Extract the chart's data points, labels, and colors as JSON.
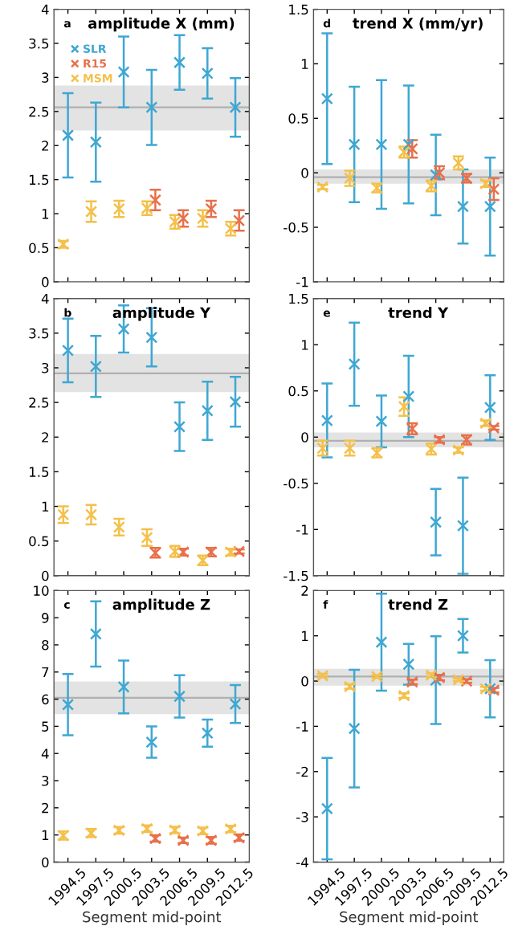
{
  "chart_data": [
    {
      "type": "scatter",
      "title": "amplitude X (mm)",
      "annotations": [
        "a"
      ],
      "marker": "cross",
      "legend": "top left",
      "tick_labels": "y",
      "grid": false,
      "xlim": [
        1993,
        2014
      ],
      "xticks": [
        1994.5,
        1997.5,
        2000.5,
        2003.5,
        2006.5,
        2009.5,
        2012.5
      ],
      "ylim": [
        0,
        4
      ],
      "yticks": [
        0,
        0.5,
        1,
        1.5,
        2,
        2.5,
        3,
        3.5,
        4
      ],
      "bands": [
        {
          "axis": "y",
          "from": 2.22,
          "to": 2.88,
          "color": "#e3e3e3"
        }
      ],
      "ref_lines": [
        {
          "axis": "y",
          "value": 2.56,
          "color": "#b0b0b0"
        }
      ],
      "series": [
        {
          "name": "SLR",
          "color": "#3ea7d3",
          "x": [
            1994.5,
            1997.5,
            2000.5,
            2003.5,
            2006.5,
            2009.5,
            2012.5
          ],
          "values": [
            2.15,
            2.05,
            3.08,
            2.56,
            3.22,
            3.06,
            2.56
          ],
          "errors": [
            0.62,
            0.58,
            0.52,
            0.55,
            0.4,
            0.37,
            0.43
          ]
        },
        {
          "name": "R15",
          "color": "#e8704a",
          "x": [
            2003.9,
            2006.9,
            2009.9,
            2012.9
          ],
          "values": [
            1.2,
            0.93,
            1.07,
            0.9
          ],
          "errors": [
            0.15,
            0.12,
            0.12,
            0.15
          ]
        },
        {
          "name": "MSM",
          "color": "#f4c04a",
          "x": [
            1994.0,
            1997.0,
            2000.0,
            2003.0,
            2006.0,
            2009.0,
            2012.0
          ],
          "values": [
            0.55,
            1.03,
            1.07,
            1.08,
            0.88,
            0.93,
            0.78
          ],
          "errors": [
            0.05,
            0.15,
            0.12,
            0.1,
            0.1,
            0.12,
            0.1
          ]
        }
      ]
    },
    {
      "type": "scatter",
      "title": "trend X (mm/yr)",
      "annotations": [
        "d"
      ],
      "marker": "cross",
      "tick_labels": "y",
      "grid": false,
      "xlim": [
        1993,
        2014
      ],
      "xticks": [
        1994.5,
        1997.5,
        2000.5,
        2003.5,
        2006.5,
        2009.5,
        2012.5
      ],
      "ylim": [
        -1,
        1.5
      ],
      "yticks": [
        -1,
        -0.5,
        0,
        0.5,
        1,
        1.5
      ],
      "bands": [
        {
          "axis": "y",
          "from": -0.1,
          "to": 0.03,
          "color": "#e3e3e3"
        }
      ],
      "ref_lines": [
        {
          "axis": "y",
          "value": -0.04,
          "color": "#b0b0b0"
        }
      ],
      "series": [
        {
          "color": "#3ea7d3",
          "x": [
            1994.5,
            1997.5,
            2000.5,
            2003.5,
            2006.5,
            2009.5,
            2012.5
          ],
          "values": [
            0.68,
            0.26,
            0.26,
            0.26,
            -0.02,
            -0.31,
            -0.31
          ],
          "errors": [
            0.6,
            0.53,
            0.59,
            0.54,
            0.37,
            0.34,
            0.45
          ]
        },
        {
          "color": "#e8704a",
          "x": [
            2003.9,
            2006.9,
            2009.9,
            2012.9
          ],
          "values": [
            0.22,
            0.0,
            -0.05,
            -0.15
          ],
          "errors": [
            0.08,
            0.06,
            0.04,
            0.1
          ]
        },
        {
          "color": "#f4c04a",
          "x": [
            1994.0,
            1997.0,
            2000.0,
            2003.0,
            2006.0,
            2009.0,
            2012.0
          ],
          "values": [
            -0.13,
            -0.05,
            -0.14,
            0.19,
            -0.12,
            0.09,
            -0.1
          ],
          "errors": [
            0.02,
            0.07,
            0.04,
            0.05,
            0.05,
            0.06,
            0.03
          ]
        }
      ]
    },
    {
      "type": "scatter",
      "title": "amplitude Y",
      "annotations": [
        "b"
      ],
      "marker": "cross",
      "tick_labels": "y",
      "grid": false,
      "xlim": [
        1993,
        2014
      ],
      "xticks": [
        1994.5,
        1997.5,
        2000.5,
        2003.5,
        2006.5,
        2009.5,
        2012.5
      ],
      "ylim": [
        0,
        4
      ],
      "yticks": [
        0,
        0.5,
        1,
        1.5,
        2,
        2.5,
        3,
        3.5,
        4
      ],
      "bands": [
        {
          "axis": "y",
          "from": 2.65,
          "to": 3.2,
          "color": "#e3e3e3"
        }
      ],
      "ref_lines": [
        {
          "axis": "y",
          "value": 2.92,
          "color": "#b0b0b0"
        }
      ],
      "series": [
        {
          "color": "#3ea7d3",
          "x": [
            1994.5,
            1997.5,
            2000.5,
            2003.5,
            2006.5,
            2009.5,
            2012.5
          ],
          "values": [
            3.25,
            3.02,
            3.56,
            3.44,
            2.15,
            2.38,
            2.51
          ],
          "errors": [
            0.46,
            0.44,
            0.34,
            0.42,
            0.35,
            0.42,
            0.36
          ]
        },
        {
          "color": "#e8704a",
          "x": [
            2003.9,
            2006.9,
            2009.9,
            2012.9
          ],
          "values": [
            0.33,
            0.34,
            0.34,
            0.35
          ],
          "errors": [
            0.07,
            0.05,
            0.06,
            0.03
          ]
        },
        {
          "color": "#f4c04a",
          "x": [
            1994.0,
            1997.0,
            2000.0,
            2003.0,
            2006.0,
            2009.0,
            2012.0
          ],
          "values": [
            0.88,
            0.88,
            0.7,
            0.55,
            0.35,
            0.22,
            0.34
          ],
          "errors": [
            0.12,
            0.14,
            0.12,
            0.12,
            0.08,
            0.07,
            0.05
          ]
        }
      ]
    },
    {
      "type": "scatter",
      "title": "trend Y",
      "annotations": [
        "e"
      ],
      "marker": "cross",
      "tick_labels": "y",
      "grid": false,
      "xlim": [
        1993,
        2014
      ],
      "xticks": [
        1994.5,
        1997.5,
        2000.5,
        2003.5,
        2006.5,
        2009.5,
        2012.5
      ],
      "ylim": [
        -1.5,
        1.5
      ],
      "yticks": [
        -1.5,
        -1,
        -0.5,
        0,
        0.5,
        1,
        1.5
      ],
      "bands": [
        {
          "axis": "y",
          "from": -0.11,
          "to": 0.05,
          "color": "#e3e3e3"
        }
      ],
      "ref_lines": [
        {
          "axis": "y",
          "value": -0.04,
          "color": "#b0b0b0"
        }
      ],
      "series": [
        {
          "color": "#3ea7d3",
          "x": [
            1994.5,
            1997.5,
            2000.5,
            2003.5,
            2006.5,
            2009.5,
            2012.5
          ],
          "values": [
            0.18,
            0.79,
            0.17,
            0.44,
            -0.92,
            -0.96,
            0.32
          ],
          "errors": [
            0.4,
            0.45,
            0.28,
            0.44,
            0.36,
            0.52,
            0.35
          ]
        },
        {
          "color": "#e8704a",
          "x": [
            2003.9,
            2006.9,
            2009.9,
            2012.9
          ],
          "values": [
            0.09,
            -0.03,
            -0.03,
            0.1
          ],
          "errors": [
            0.06,
            0.03,
            0.05,
            0.02
          ]
        },
        {
          "color": "#f4c04a",
          "x": [
            1994.0,
            1997.0,
            2000.0,
            2003.0,
            2006.0,
            2009.0,
            2012.0
          ],
          "values": [
            -0.12,
            -0.12,
            -0.17,
            0.33,
            -0.13,
            -0.14,
            0.15
          ],
          "errors": [
            0.08,
            0.08,
            0.05,
            0.1,
            0.06,
            0.03,
            0.03
          ]
        }
      ]
    },
    {
      "type": "scatter",
      "title": "amplitude Z",
      "annotations": [
        "c"
      ],
      "xlabel": "Segment mid-point",
      "marker": "cross",
      "grid": false,
      "xlim": [
        1993,
        2014
      ],
      "xticks": [
        1994.5,
        1997.5,
        2000.5,
        2003.5,
        2006.5,
        2009.5,
        2012.5
      ],
      "ylim": [
        0,
        10
      ],
      "yticks": [
        0,
        1,
        2,
        3,
        4,
        5,
        6,
        7,
        8,
        9,
        10
      ],
      "bands": [
        {
          "axis": "y",
          "from": 5.45,
          "to": 6.65,
          "color": "#e3e3e3"
        }
      ],
      "ref_lines": [
        {
          "axis": "y",
          "value": 6.05,
          "color": "#b0b0b0"
        }
      ],
      "series": [
        {
          "color": "#3ea7d3",
          "x": [
            1994.5,
            1997.5,
            2000.5,
            2003.5,
            2006.5,
            2009.5,
            2012.5
          ],
          "values": [
            5.8,
            8.4,
            6.45,
            4.42,
            6.1,
            4.75,
            5.82
          ],
          "errors": [
            1.13,
            1.2,
            0.97,
            0.58,
            0.78,
            0.5,
            0.7
          ]
        },
        {
          "color": "#e8704a",
          "x": [
            2003.9,
            2006.9,
            2009.9,
            2012.9
          ],
          "values": [
            0.87,
            0.8,
            0.8,
            0.9
          ],
          "errors": [
            0.12,
            0.1,
            0.12,
            0.12
          ]
        },
        {
          "color": "#f4c04a",
          "x": [
            1994.0,
            1997.0,
            2000.0,
            2003.0,
            2006.0,
            2009.0,
            2012.0
          ],
          "values": [
            0.98,
            1.07,
            1.17,
            1.23,
            1.18,
            1.15,
            1.22
          ],
          "errors": [
            0.15,
            0.15,
            0.12,
            0.12,
            0.12,
            0.12,
            0.12
          ]
        }
      ]
    },
    {
      "type": "scatter",
      "title": "trend Z",
      "annotations": [
        "f"
      ],
      "xlabel": "Segment mid-point",
      "marker": "cross",
      "grid": false,
      "xlim": [
        1993,
        2014
      ],
      "xticks": [
        1994.5,
        1997.5,
        2000.5,
        2003.5,
        2006.5,
        2009.5,
        2012.5
      ],
      "ylim": [
        -4,
        2
      ],
      "yticks": [
        -4,
        -3,
        -2,
        -1,
        0,
        1,
        2
      ],
      "bands": [
        {
          "axis": "y",
          "from": -0.1,
          "to": 0.27,
          "color": "#e3e3e3"
        }
      ],
      "ref_lines": [
        {
          "axis": "y",
          "value": 0.1,
          "color": "#b0b0b0"
        }
      ],
      "series": [
        {
          "color": "#3ea7d3",
          "x": [
            1994.5,
            1997.5,
            2000.5,
            2003.5,
            2006.5,
            2009.5,
            2012.5
          ],
          "values": [
            -2.82,
            -1.05,
            0.86,
            0.37,
            0.02,
            1.0,
            -0.17
          ],
          "errors": [
            1.12,
            1.3,
            1.07,
            0.45,
            0.97,
            0.37,
            0.63
          ]
        },
        {
          "color": "#e8704a",
          "x": [
            2003.9,
            2006.9,
            2009.9,
            2012.9
          ],
          "values": [
            -0.02,
            0.08,
            0.0,
            -0.2
          ],
          "errors": [
            0.05,
            0.06,
            0.04,
            0.05
          ]
        },
        {
          "color": "#f4c04a",
          "x": [
            1994.0,
            1997.0,
            2000.0,
            2003.0,
            2006.0,
            2009.0,
            2012.0
          ],
          "values": [
            0.12,
            -0.12,
            0.1,
            -0.32,
            0.13,
            0.03,
            -0.17
          ],
          "errors": [
            0.04,
            0.05,
            0.03,
            0.05,
            0.04,
            0.03,
            0.04
          ]
        }
      ]
    }
  ]
}
